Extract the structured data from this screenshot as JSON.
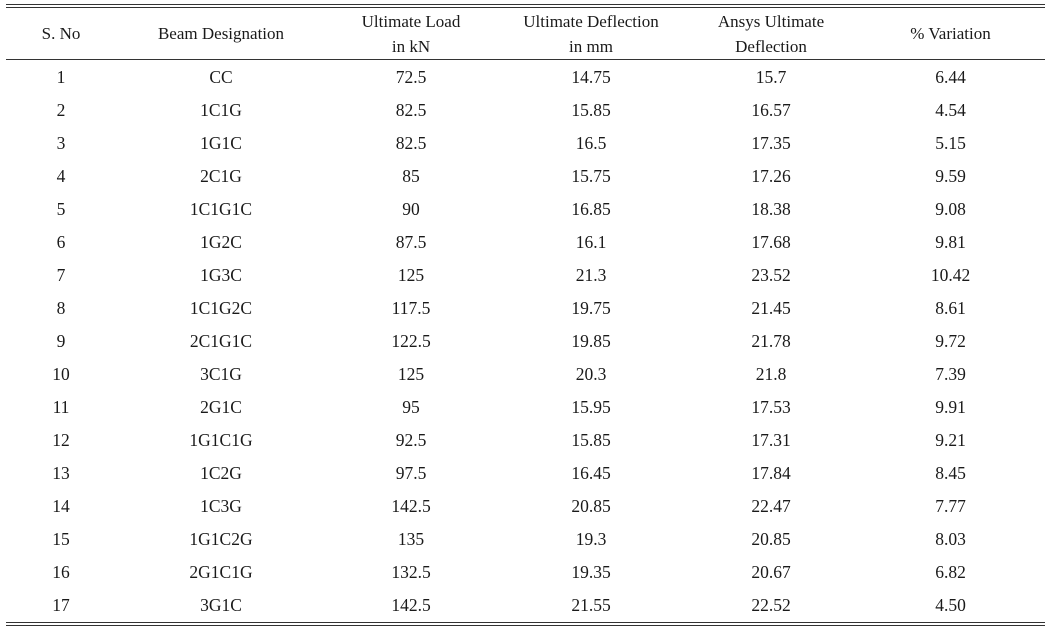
{
  "table": {
    "headers": [
      "S. No",
      "Beam Designation",
      "Ultimate Load\nin kN",
      "Ultimate Deflection\nin mm",
      "Ansys Ultimate\nDeflection",
      "% Variation"
    ],
    "rows": [
      [
        "1",
        "CC",
        "72.5",
        "14.75",
        "15.7",
        "6.44"
      ],
      [
        "2",
        "1C1G",
        "82.5",
        "15.85",
        "16.57",
        "4.54"
      ],
      [
        "3",
        "1G1C",
        "82.5",
        "16.5",
        "17.35",
        "5.15"
      ],
      [
        "4",
        "2C1G",
        "85",
        "15.75",
        "17.26",
        "9.59"
      ],
      [
        "5",
        "1C1G1C",
        "90",
        "16.85",
        "18.38",
        "9.08"
      ],
      [
        "6",
        "1G2C",
        "87.5",
        "16.1",
        "17.68",
        "9.81"
      ],
      [
        "7",
        "1G3C",
        "125",
        "21.3",
        "23.52",
        "10.42"
      ],
      [
        "8",
        "1C1G2C",
        "117.5",
        "19.75",
        "21.45",
        "8.61"
      ],
      [
        "9",
        "2C1G1C",
        "122.5",
        "19.85",
        "21.78",
        "9.72"
      ],
      [
        "10",
        "3C1G",
        "125",
        "20.3",
        "21.8",
        "7.39"
      ],
      [
        "11",
        "2G1C",
        "95",
        "15.95",
        "17.53",
        "9.91"
      ],
      [
        "12",
        "1G1C1G",
        "92.5",
        "15.85",
        "17.31",
        "9.21"
      ],
      [
        "13",
        "1C2G",
        "97.5",
        "16.45",
        "17.84",
        "8.45"
      ],
      [
        "14",
        "1C3G",
        "142.5",
        "20.85",
        "22.47",
        "7.77"
      ],
      [
        "15",
        "1G1C2G",
        "135",
        "19.3",
        "20.85",
        "8.03"
      ],
      [
        "16",
        "2G1C1G",
        "132.5",
        "19.35",
        "20.67",
        "6.82"
      ],
      [
        "17",
        "3G1C",
        "142.5",
        "21.55",
        "22.52",
        "4.50"
      ]
    ]
  }
}
